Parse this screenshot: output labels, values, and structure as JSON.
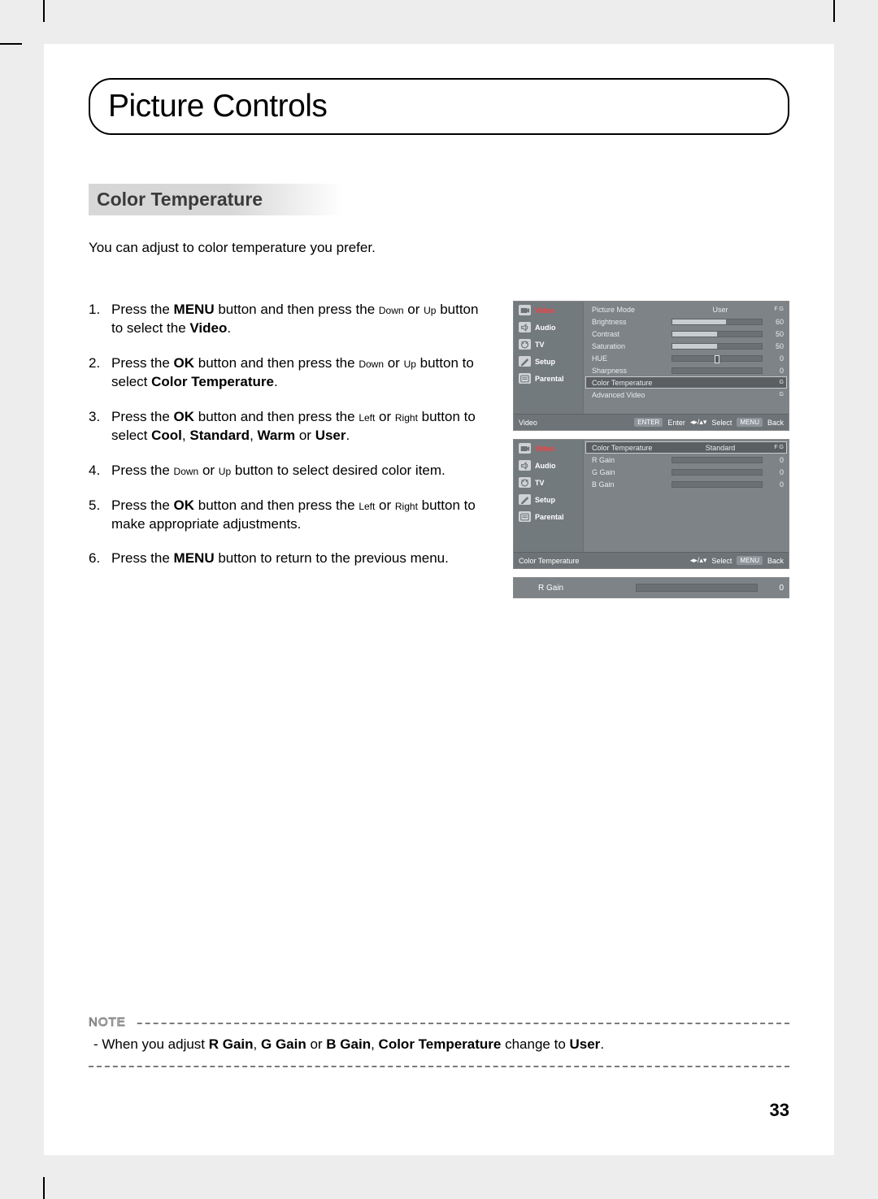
{
  "page_title": "Picture Controls",
  "section_title": "Color Temperature",
  "intro": "You can adjust to color temperature you prefer.",
  "page_number": "33",
  "steps": [
    {
      "n": "1.",
      "segments": [
        {
          "t": "Press the "
        },
        {
          "t": "MENU",
          "b": true
        },
        {
          "t": " button and then press the "
        },
        {
          "t": "Down",
          "small": true
        },
        {
          "t": " or "
        },
        {
          "t": "Up",
          "small": true
        },
        {
          "t": " button to select the "
        },
        {
          "t": "Video",
          "b": true
        },
        {
          "t": "."
        }
      ]
    },
    {
      "n": "2.",
      "segments": [
        {
          "t": "Press the "
        },
        {
          "t": "OK",
          "b": true
        },
        {
          "t": " button and then press the "
        },
        {
          "t": "Down",
          "small": true
        },
        {
          "t": " or "
        },
        {
          "t": "Up",
          "small": true
        },
        {
          "t": " button to select "
        },
        {
          "t": "Color Temperature",
          "b": true
        },
        {
          "t": "."
        }
      ]
    },
    {
      "n": "3.",
      "segments": [
        {
          "t": "Press the "
        },
        {
          "t": "OK",
          "b": true
        },
        {
          "t": " button and then press the "
        },
        {
          "t": "Left",
          "small": true
        },
        {
          "t": " or "
        },
        {
          "t": "Right",
          "small": true
        },
        {
          "t": " button to select "
        },
        {
          "t": "Cool",
          "b": true
        },
        {
          "t": ", "
        },
        {
          "t": "Standard",
          "b": true
        },
        {
          "t": ", "
        },
        {
          "t": "Warm",
          "b": true
        },
        {
          "t": " or "
        },
        {
          "t": "User",
          "b": true
        },
        {
          "t": "."
        }
      ]
    },
    {
      "n": "4.",
      "segments": [
        {
          "t": "Press the "
        },
        {
          "t": "Down",
          "small": true
        },
        {
          "t": " or "
        },
        {
          "t": "Up",
          "small": true
        },
        {
          "t": " button to select desired color item."
        }
      ]
    },
    {
      "n": "5.",
      "segments": [
        {
          "t": "Press the "
        },
        {
          "t": "OK",
          "b": true
        },
        {
          "t": " button and then press the "
        },
        {
          "t": "Left",
          "small": true
        },
        {
          "t": " or "
        },
        {
          "t": "Right",
          "small": true
        },
        {
          "t": " button to make appropriate adjustments."
        }
      ]
    },
    {
      "n": "6.",
      "segments": [
        {
          "t": "Press the "
        },
        {
          "t": "MENU",
          "b": true
        },
        {
          "t": " button to return to the previous menu."
        }
      ]
    }
  ],
  "note_label": "NOTE",
  "note_segments": [
    {
      "t": "When you adjust "
    },
    {
      "t": "R Gain",
      "b": true
    },
    {
      "t": ", "
    },
    {
      "t": "G Gain",
      "b": true
    },
    {
      "t": " or "
    },
    {
      "t": "B Gain",
      "b": true
    },
    {
      "t": ", "
    },
    {
      "t": "Color Temperature",
      "b": true
    },
    {
      "t": " change to "
    },
    {
      "t": "User",
      "b": true
    },
    {
      "t": "."
    }
  ],
  "nav_items": [
    {
      "id": "video",
      "label": "Video",
      "sel": true,
      "icon": "video"
    },
    {
      "id": "audio",
      "label": "Audio",
      "sel": false,
      "icon": "audio"
    },
    {
      "id": "tv",
      "label": "TV",
      "sel": false,
      "icon": "tv"
    },
    {
      "id": "setup",
      "label": "Setup",
      "sel": false,
      "icon": "setup"
    },
    {
      "id": "parental",
      "label": "Parental",
      "sel": false,
      "icon": "parental"
    }
  ],
  "osd1": {
    "rows": [
      {
        "lbl": "Picture Mode",
        "type": "text",
        "value": "User",
        "tag": "F G"
      },
      {
        "lbl": "Brightness",
        "type": "bar",
        "value": 60,
        "max": 100
      },
      {
        "lbl": "Contrast",
        "type": "bar",
        "value": 50,
        "max": 100
      },
      {
        "lbl": "Saturation",
        "type": "bar",
        "value": 50,
        "max": 100
      },
      {
        "lbl": "HUE",
        "type": "bar",
        "value": 0,
        "max": 100,
        "knob": 50
      },
      {
        "lbl": "Sharpness",
        "type": "bar",
        "value": 0,
        "max": 100
      },
      {
        "lbl": "Color Temperature",
        "type": "plain",
        "sel": true,
        "tag": "G"
      },
      {
        "lbl": "Advanced Video",
        "type": "plain",
        "tag": "G"
      }
    ],
    "crumb": "Video",
    "hints": [
      {
        "chip": "ENTER",
        "txt": "Enter"
      },
      {
        "arrows": "lr-ud",
        "txt": "Select"
      },
      {
        "chip": "MENU",
        "txt": "Back"
      }
    ]
  },
  "osd2": {
    "rows": [
      {
        "lbl": "Color Temperature",
        "type": "text",
        "value": "Standard",
        "sel": true,
        "tag": "F G"
      },
      {
        "lbl": "R Gain",
        "type": "bar",
        "value": 0,
        "max": 100
      },
      {
        "lbl": "G Gain",
        "type": "bar",
        "value": 0,
        "max": 100
      },
      {
        "lbl": "B Gain",
        "type": "bar",
        "value": 0,
        "max": 100
      }
    ],
    "crumb": "Color Temperature",
    "hints": [
      {
        "arrows": "lr-ud",
        "txt": "Select"
      },
      {
        "chip": "MENU",
        "txt": "Back"
      }
    ]
  },
  "osd3": {
    "lbl": "R Gain",
    "value": 0,
    "max": 100
  },
  "colors": {
    "page_bg": "#ededed",
    "osd_bg": "#7e8387",
    "osd_nav_bg": "#737a7e",
    "sel_color": "#ff3b3b",
    "bar_fill": "#c9cdd1"
  }
}
